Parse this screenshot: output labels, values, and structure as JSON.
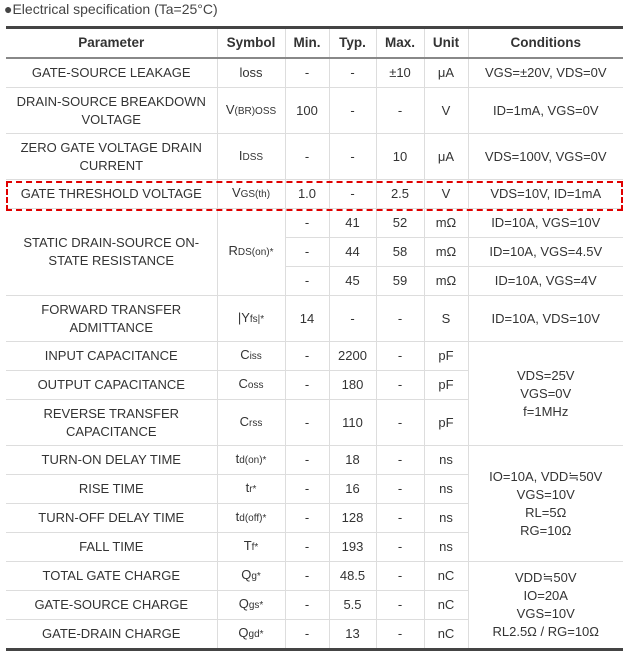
{
  "title": "●Electrical specification (Ta=25°C)",
  "highlight_color": "#e00000",
  "headers": [
    "Parameter",
    "Symbol",
    "Min.",
    "Typ.",
    "Max.",
    "Unit",
    "Conditions"
  ],
  "rows": [
    {
      "param": "GATE-SOURCE LEAKAGE",
      "sym": [
        "loss",
        ""
      ],
      "min": "-",
      "typ": "-",
      "max": "±10",
      "unit": "μA",
      "cond": "VGS=±20V, VDS=0V"
    },
    {
      "param": "DRAIN-SOURCE BREAKDOWN VOLTAGE",
      "sym": [
        "V",
        "(BR)OSS"
      ],
      "min": "100",
      "typ": "-",
      "max": "-",
      "unit": "V",
      "cond": "ID=1mA, VGS=0V",
      "tall": true
    },
    {
      "param": "ZERO GATE VOLTAGE DRAIN CURRENT",
      "sym": [
        "I",
        "DSS"
      ],
      "min": "-",
      "typ": "-",
      "max": "10",
      "unit": "μA",
      "cond": "VDS=100V, VGS=0V",
      "tall": true
    },
    {
      "param": "GATE THRESHOLD VOLTAGE",
      "sym": [
        "V",
        "GS(th)"
      ],
      "min": "1.0",
      "typ": "-",
      "max": "2.5",
      "unit": "V",
      "cond": "VDS=10V, ID=1mA"
    },
    {
      "param": "STATIC DRAIN-SOURCE ON-STATE RESISTANCE",
      "sym": [
        "R",
        "DS(on)*"
      ],
      "span": 3,
      "min": "-",
      "typ": "41",
      "max": "52",
      "unit": "mΩ",
      "cond": "ID=10A, VGS=10V"
    },
    {
      "min": "-",
      "typ": "44",
      "max": "58",
      "unit": "mΩ",
      "cond": "ID=10A, VGS=4.5V"
    },
    {
      "min": "-",
      "typ": "45",
      "max": "59",
      "unit": "mΩ",
      "cond": "ID=10A, VGS=4V"
    },
    {
      "param": "FORWARD TRANSFER ADMITTANCE",
      "sym": [
        "|Y",
        "fs|*"
      ],
      "min": "14",
      "typ": "-",
      "max": "-",
      "unit": "S",
      "cond": "ID=10A, VDS=10V",
      "tall": true
    },
    {
      "param": "INPUT CAPACITANCE",
      "sym": [
        "C",
        "iss"
      ],
      "min": "-",
      "typ": "2200",
      "max": "-",
      "unit": "pF",
      "cond": "VDS=25V\nVGS=0V\nf=1MHz",
      "condspan": 3
    },
    {
      "param": "OUTPUT CAPACITANCE",
      "sym": [
        "C",
        "oss"
      ],
      "min": "-",
      "typ": "180",
      "max": "-",
      "unit": "pF"
    },
    {
      "param": "REVERSE TRANSFER CAPACITANCE",
      "sym": [
        "C",
        "rss"
      ],
      "min": "-",
      "typ": "110",
      "max": "-",
      "unit": "pF",
      "tall": true
    },
    {
      "param": "TURN-ON DELAY TIME",
      "sym": [
        "t",
        "d(on)*"
      ],
      "min": "-",
      "typ": "18",
      "max": "-",
      "unit": "ns",
      "cond": "IO=10A, VDD≒50V\nVGS=10V\nRL=5Ω\nRG=10Ω",
      "condspan": 4
    },
    {
      "param": "RISE TIME",
      "sym": [
        "t",
        "r*"
      ],
      "min": "-",
      "typ": "16",
      "max": "-",
      "unit": "ns"
    },
    {
      "param": "TURN-OFF DELAY TIME",
      "sym": [
        "t",
        "d(off)*"
      ],
      "min": "-",
      "typ": "128",
      "max": "-",
      "unit": "ns"
    },
    {
      "param": "FALL TIME",
      "sym": [
        "T",
        "f*"
      ],
      "min": "-",
      "typ": "193",
      "max": "-",
      "unit": "ns"
    },
    {
      "param": "TOTAL GATE CHARGE",
      "sym": [
        "Q",
        "g*"
      ],
      "min": "-",
      "typ": "48.5",
      "max": "-",
      "unit": "nC",
      "cond": "VDD≒50V\nIO=20A\nVGS=10V\nRL2.5Ω / RG=10Ω",
      "condspan": 3
    },
    {
      "param": "GATE-SOURCE CHARGE",
      "sym": [
        "Q",
        "gs*"
      ],
      "min": "-",
      "typ": "5.5",
      "max": "-",
      "unit": "nC"
    },
    {
      "param": "GATE-DRAIN CHARGE",
      "sym": [
        "Q",
        "gd*"
      ],
      "min": "-",
      "typ": "13",
      "max": "-",
      "unit": "nC"
    }
  ]
}
